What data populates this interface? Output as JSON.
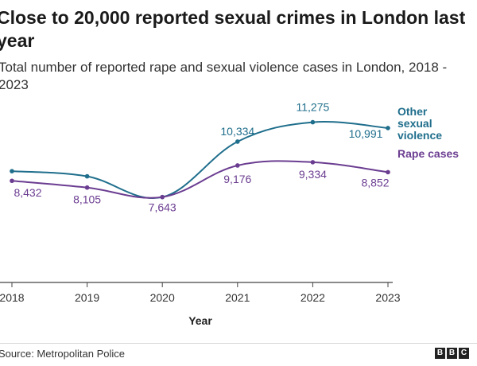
{
  "chart_data": {
    "type": "line",
    "title": "Close to 20,000 reported sexual crimes in London last year",
    "subtitle": "Total number of reported rape and sexual violence cases in London, 2018 - 2023",
    "xlabel": "Year",
    "ylabel": "",
    "categories": [
      "2018",
      "2019",
      "2020",
      "2021",
      "2022",
      "2023"
    ],
    "ylim": [
      3500,
      11800
    ],
    "grid": false,
    "series": [
      {
        "name": "Other sexual violence",
        "label_lines": [
          "Other",
          "sexual",
          "violence"
        ],
        "color": "#1f6e8c",
        "values": [
          8900,
          8650,
          7643,
          10334,
          11275,
          10991
        ],
        "labels": [
          "",
          "",
          "",
          "10,334",
          "11,275",
          "10,991"
        ]
      },
      {
        "name": "Rape cases",
        "label_lines": [
          "Rape cases"
        ],
        "color": "#6b3d91",
        "values": [
          8432,
          8105,
          7643,
          9176,
          9334,
          8852
        ],
        "labels": [
          "8,432",
          "8,105",
          "7,643",
          "9,176",
          "9,334",
          "8,852"
        ]
      }
    ]
  },
  "footer": {
    "source": "Source: Metropolitan Police",
    "logo_letters": [
      "B",
      "B",
      "C"
    ]
  }
}
